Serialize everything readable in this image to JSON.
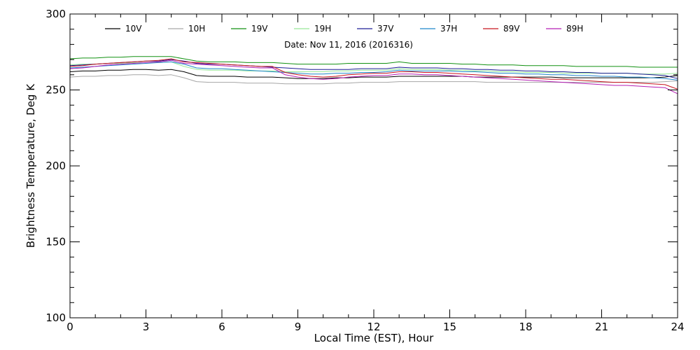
{
  "chart_data": {
    "type": "line",
    "title": "",
    "subtitle": "Date: Nov 11, 2016 (2016316)",
    "xlabel": "Local Time (EST), Hour",
    "ylabel": "Brightness Temperature, Deg K",
    "xlim": [
      0,
      24
    ],
    "ylim": [
      100,
      300
    ],
    "xticks": [
      0,
      3,
      6,
      9,
      12,
      15,
      18,
      21,
      24
    ],
    "yticks": [
      100,
      150,
      200,
      250,
      300
    ],
    "grid": false,
    "legend_position": "top",
    "colors": {
      "10V": "#000000",
      "10H": "#a6a6a6",
      "19V": "#129112",
      "19H": "#96e896",
      "37V": "#1e1e96",
      "37H": "#1f86c9",
      "89V": "#c8141e",
      "89H": "#b41eb4"
    },
    "x": [
      0,
      0.5,
      1,
      1.5,
      2,
      2.5,
      3,
      3.5,
      4,
      4.5,
      5,
      5.5,
      6,
      6.5,
      7,
      7.5,
      8,
      8.5,
      9,
      9.5,
      10,
      10.5,
      11,
      11.5,
      12,
      12.5,
      13,
      13.5,
      14,
      14.5,
      15,
      15.5,
      16,
      16.5,
      17,
      17.5,
      18,
      18.5,
      19,
      19.5,
      20,
      20.5,
      21,
      21.5,
      22,
      22.5,
      23,
      23.5,
      24
    ],
    "series": [
      {
        "name": "10V",
        "values": [
          262,
          262.5,
          262.5,
          263,
          263,
          263.5,
          263.5,
          263,
          263.5,
          262,
          259.5,
          259,
          259,
          259,
          258.5,
          258.5,
          258.5,
          258,
          257.5,
          257.5,
          257.5,
          258,
          258,
          258.5,
          258.5,
          258.5,
          259,
          259,
          259,
          259,
          259,
          259,
          258.5,
          258.5,
          258.5,
          258.5,
          258.5,
          258.5,
          258.5,
          258,
          258,
          258,
          258,
          258,
          258,
          258,
          258,
          258.5,
          259.5
        ]
      },
      {
        "name": "10H",
        "values": [
          258.5,
          259,
          259,
          259.5,
          259.5,
          260,
          260,
          259.5,
          260,
          258,
          255.5,
          255,
          255,
          255,
          254.5,
          254.5,
          254.5,
          254,
          254,
          254,
          254,
          254.5,
          254.5,
          255,
          255,
          255,
          255.5,
          255.5,
          255.5,
          255.5,
          255.5,
          255.5,
          255.5,
          255,
          255,
          255,
          255,
          255,
          255,
          255,
          255,
          255,
          255,
          255,
          255,
          255,
          255,
          255.5,
          256
        ]
      },
      {
        "name": "19V",
        "values": [
          270.5,
          271,
          271,
          271.5,
          271.5,
          272,
          272,
          272,
          272,
          270.5,
          269,
          268.5,
          268.5,
          268.5,
          268,
          268,
          268,
          267.5,
          267,
          267,
          267,
          267,
          267.5,
          267.5,
          267.5,
          267.5,
          268.5,
          267.5,
          267.5,
          267.5,
          267.5,
          267,
          267,
          266.5,
          266.5,
          266.5,
          266,
          266,
          266,
          266,
          265.5,
          265.5,
          265.5,
          265.5,
          265.5,
          265,
          265,
          265,
          265
        ]
      },
      {
        "name": "19H",
        "values": [
          266.5,
          267,
          267,
          267.5,
          267.5,
          268,
          268,
          268,
          268.5,
          265.5,
          263.5,
          263,
          263,
          263,
          262.5,
          262.5,
          262.5,
          262,
          262,
          262,
          262,
          262.5,
          262.5,
          263,
          263,
          263,
          264,
          263.5,
          263.5,
          263.5,
          263,
          263,
          262.5,
          262.5,
          262,
          262,
          261.5,
          261.5,
          261.5,
          261,
          261,
          261,
          261,
          261,
          261,
          260.5,
          260.5,
          260.5,
          261
        ]
      },
      {
        "name": "37V",
        "values": [
          266,
          266.5,
          267,
          267.5,
          268,
          268.5,
          269,
          269,
          270,
          269,
          267.5,
          267,
          267,
          266.5,
          266,
          265.5,
          265,
          264.5,
          264,
          263.5,
          263.5,
          263.5,
          263.5,
          264,
          264,
          264,
          265,
          264.5,
          264.5,
          264.5,
          264,
          264,
          263.5,
          263.5,
          263,
          263,
          262.5,
          262.5,
          262,
          262,
          261.5,
          261.5,
          261,
          261,
          261,
          260.5,
          260,
          259.5,
          257.5
        ]
      },
      {
        "name": "37H",
        "values": [
          264.5,
          265,
          265.5,
          266,
          266.5,
          267,
          267.5,
          268,
          268.5,
          267,
          264.5,
          264,
          264,
          263.5,
          263,
          262.5,
          262,
          261.5,
          261,
          260.5,
          260.5,
          261,
          261,
          261.5,
          261.5,
          262,
          263,
          262.5,
          262.5,
          262.5,
          262.5,
          262,
          262,
          261.5,
          261,
          261,
          260.5,
          260.5,
          260,
          260,
          259.5,
          259.5,
          259,
          259,
          258.5,
          258.5,
          258,
          257.5,
          256.5
        ]
      },
      {
        "name": "89V",
        "values": [
          265.5,
          266,
          267,
          267.5,
          268,
          268.5,
          269,
          269.5,
          270.5,
          268.5,
          268,
          267.5,
          267,
          266.5,
          266,
          265.5,
          265.5,
          261.5,
          260,
          259,
          258.5,
          259,
          260,
          260.5,
          261,
          261,
          262,
          262,
          261.5,
          261.5,
          261,
          260.5,
          260,
          259.5,
          259,
          258.5,
          258,
          257.5,
          257,
          257,
          256.5,
          256,
          255.5,
          255,
          255,
          254.5,
          254,
          253.5,
          250.5
        ]
      },
      {
        "name": "89H",
        "values": [
          264,
          264.5,
          265.5,
          266.5,
          267,
          267.5,
          268,
          268.5,
          269.5,
          267.5,
          267,
          266.5,
          266,
          265.5,
          265,
          264.5,
          264.5,
          260,
          258.5,
          257.5,
          257,
          257.5,
          258.5,
          259,
          259.5,
          259.5,
          260.5,
          260.5,
          260,
          260,
          259.5,
          259,
          258.5,
          258,
          257.5,
          257,
          256.5,
          256,
          255.5,
          255,
          254.5,
          254,
          253.5,
          253,
          253,
          252.5,
          252,
          251.5,
          247.5
        ]
      }
    ]
  }
}
